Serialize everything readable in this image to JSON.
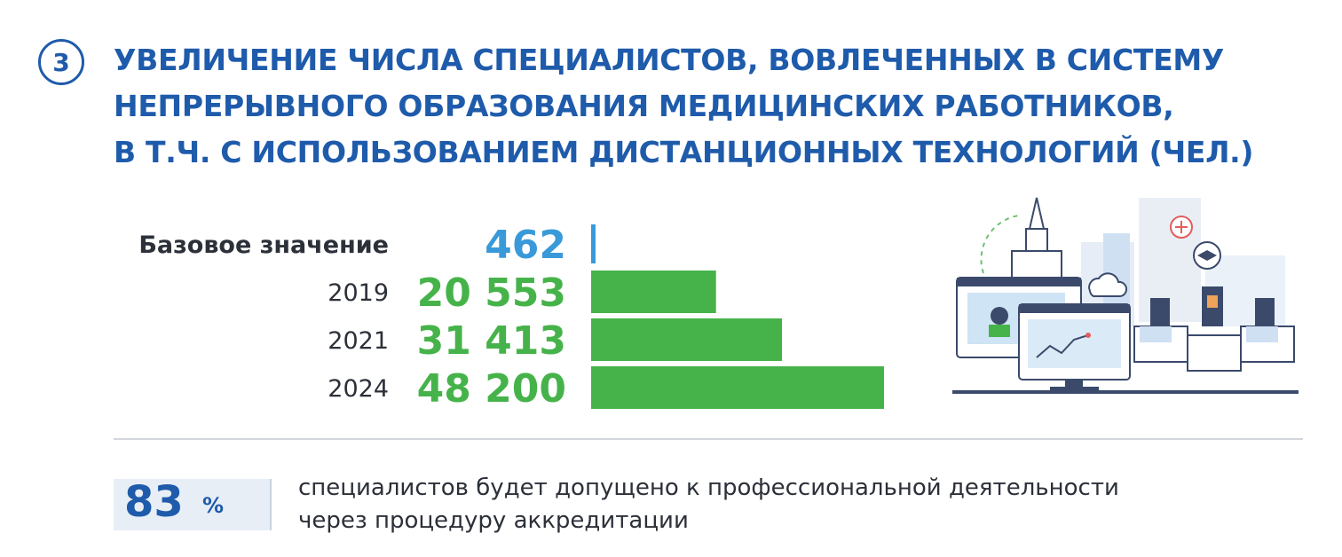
{
  "section": {
    "number": "3",
    "title_lines": [
      "УВЕЛИЧЕНИЕ ЧИСЛА СПЕЦИАЛИСТОВ, ВОВЛЕЧЕННЫХ В СИСТЕМУ",
      "НЕПРЕРЫВНОГО ОБРАЗОВАНИЯ МЕДИЦИНСКИХ РАБОТНИКОВ,",
      "В Т.Ч. С ИСПОЛЬЗОВАНИЕМ ДИСТАНЦИОННЫХ ТЕХНОЛОГИЙ  (ЧЕЛ.)"
    ]
  },
  "chart_data": {
    "type": "bar",
    "orientation": "horizontal",
    "categories": [
      "Базовое значение",
      "2019",
      "2021",
      "2024"
    ],
    "values": [
      462,
      20553,
      31413,
      48200
    ],
    "value_labels": [
      "462",
      "20 553",
      "31 413",
      "48 200"
    ],
    "xlim": [
      0,
      48200
    ],
    "grid": false,
    "colors": {
      "base": "#3a9ad9",
      "bars": "#46b34a",
      "base_label": "#3a9ad9",
      "labels": "#46b34a"
    }
  },
  "stat": {
    "value": "83",
    "unit": "%",
    "text_lines": [
      "специалистов будет допущено к профессиональной деятельности",
      "через процедуру аккредитации"
    ]
  },
  "illustration": {
    "icon": "medical-education-icon"
  },
  "colors": {
    "brand": "#1f5bab",
    "accent_green": "#46b34a",
    "accent_blue": "#3a9ad9"
  }
}
